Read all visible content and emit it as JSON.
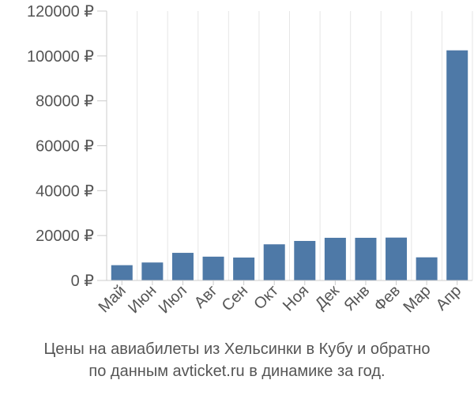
{
  "chart_data": {
    "type": "bar",
    "title": "",
    "xlabel": "",
    "ylabel": "",
    "categories": [
      "Май",
      "Июн",
      "Июл",
      "Авг",
      "Сен",
      "Окт",
      "Ноя",
      "Дек",
      "Янв",
      "Фев",
      "Мар",
      "Апр"
    ],
    "values": [
      6800,
      8000,
      12300,
      10600,
      10200,
      16100,
      17600,
      19000,
      19000,
      19100,
      10300,
      102500
    ],
    "ylim": [
      0,
      120000
    ],
    "yticks": [
      0,
      20000,
      40000,
      60000,
      80000,
      100000,
      120000
    ],
    "ytick_labels": [
      "0 ₽",
      "20000 ₽",
      "40000 ₽",
      "60000 ₽",
      "80000 ₽",
      "100000 ₽",
      "120000 ₽"
    ],
    "grid": "vertical",
    "bar_color": "#4e79a7"
  },
  "caption": {
    "line1": "Цены на авиабилеты из Хельсинки в Кубу и обратно",
    "line2": "по данным avticket.ru в динамике за год."
  }
}
